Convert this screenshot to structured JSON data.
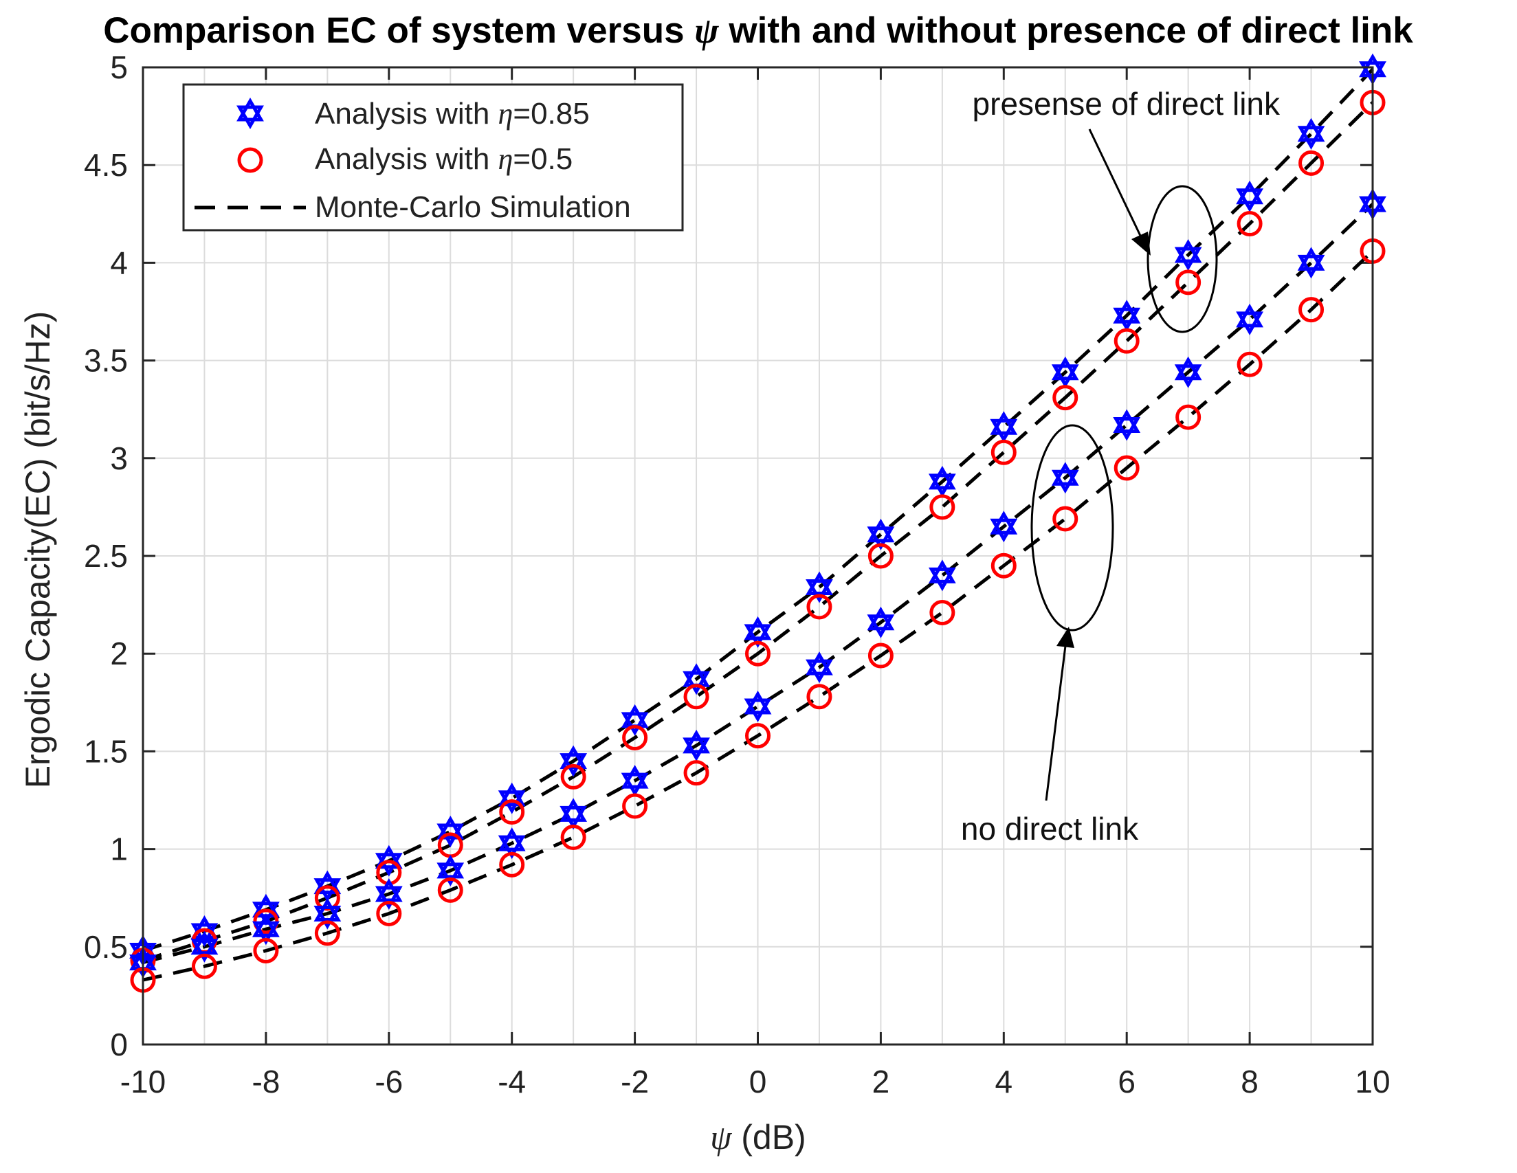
{
  "chart_data": {
    "type": "line",
    "title_parts": [
      "Comparison EC of system versus ",
      "ψ",
      " with and without presence of direct link"
    ],
    "xlabel_parts": [
      "ψ",
      " (dB)"
    ],
    "ylabel": "Ergodic Capacity(EC) (bit/s/Hz)",
    "xlim": [
      -10,
      10
    ],
    "ylim": [
      0,
      5
    ],
    "xticks": [
      -10,
      -8,
      -6,
      -4,
      -2,
      0,
      2,
      4,
      6,
      8,
      10
    ],
    "yticks": [
      0,
      0.5,
      1,
      1.5,
      2,
      2.5,
      3,
      3.5,
      4,
      4.5,
      5
    ],
    "grid": true,
    "x": [
      -10,
      -9,
      -8,
      -7,
      -6,
      -5,
      -4,
      -3,
      -2,
      -1,
      0,
      1,
      2,
      3,
      4,
      5,
      6,
      7,
      8,
      9,
      10
    ],
    "series": [
      {
        "name": "Analysis with η=0.85 (direct link)",
        "marker": "hexagram",
        "color": "#0000ff",
        "values": [
          0.48,
          0.58,
          0.69,
          0.81,
          0.94,
          1.09,
          1.26,
          1.45,
          1.66,
          1.87,
          2.11,
          2.34,
          2.61,
          2.88,
          3.16,
          3.44,
          3.73,
          4.04,
          4.34,
          4.66,
          4.99
        ]
      },
      {
        "name": "Analysis with η=0.5 (direct link)",
        "marker": "circle",
        "color": "#ff0000",
        "values": [
          0.43,
          0.53,
          0.63,
          0.75,
          0.88,
          1.02,
          1.19,
          1.37,
          1.57,
          1.78,
          2.0,
          2.24,
          2.5,
          2.75,
          3.03,
          3.31,
          3.6,
          3.9,
          4.2,
          4.51,
          4.82
        ]
      },
      {
        "name": "Analysis with η=0.85 (no direct link)",
        "marker": "hexagram",
        "color": "#0000ff",
        "values": [
          0.42,
          0.5,
          0.59,
          0.67,
          0.77,
          0.89,
          1.03,
          1.18,
          1.35,
          1.53,
          1.73,
          1.93,
          2.16,
          2.4,
          2.65,
          2.9,
          3.17,
          3.44,
          3.71,
          4.0,
          4.3
        ]
      },
      {
        "name": "Analysis with η=0.5 (no direct link)",
        "marker": "circle",
        "color": "#ff0000",
        "values": [
          0.33,
          0.4,
          0.48,
          0.57,
          0.67,
          0.79,
          0.92,
          1.06,
          1.22,
          1.39,
          1.58,
          1.78,
          1.99,
          2.21,
          2.45,
          2.69,
          2.95,
          3.21,
          3.48,
          3.76,
          4.06
        ]
      }
    ],
    "legend": {
      "placement": "top-left",
      "entries": [
        {
          "prefix": "Analysis with ",
          "symbol": "η",
          "suffix": "=0.85",
          "marker": "hexagram",
          "color": "#0000ff"
        },
        {
          "prefix": "Analysis with ",
          "symbol": "η",
          "suffix": "=0.5",
          "marker": "circle",
          "color": "#ff0000"
        },
        {
          "prefix": "",
          "symbol": "",
          "suffix": "Monte-Carlo Simulation",
          "marker": "dashed",
          "color": "#000000"
        }
      ]
    },
    "annotations": [
      {
        "text": "presense of direct link"
      },
      {
        "text": "no direct link"
      }
    ]
  }
}
